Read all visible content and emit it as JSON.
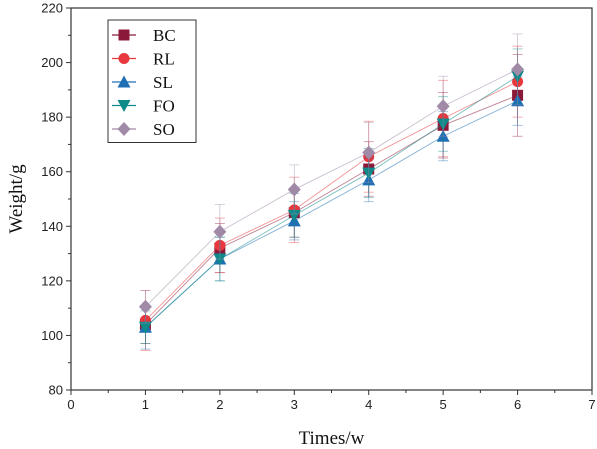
{
  "chart_data": {
    "type": "line",
    "xlabel": "Times/w",
    "ylabel": "Weight/g",
    "xlim": [
      0,
      7
    ],
    "ylim": [
      80,
      220
    ],
    "xticks": [
      0,
      1,
      2,
      3,
      4,
      5,
      6,
      7
    ],
    "yticks": [
      80,
      100,
      120,
      140,
      160,
      180,
      200,
      220
    ],
    "x": [
      1,
      2,
      3,
      4,
      5,
      6
    ],
    "legend_position": "top-left",
    "grid": false,
    "series": [
      {
        "name": "BC",
        "color": "#8b1a3a",
        "marker": "square",
        "values": [
          104,
          132,
          145,
          161,
          177,
          188
        ],
        "error": [
          7,
          9,
          9,
          10,
          12,
          15
        ]
      },
      {
        "name": "RL",
        "color": "#e8383d",
        "marker": "circle",
        "values": [
          105.5,
          133,
          146,
          165.5,
          179.5,
          193
        ],
        "error": [
          11,
          10,
          12,
          13,
          14,
          13
        ]
      },
      {
        "name": "SL",
        "color": "#1f6fb4",
        "marker": "triangle-up",
        "values": [
          103,
          128,
          142,
          157,
          173,
          186
        ],
        "error": [
          8,
          8,
          7,
          8,
          9,
          9
        ]
      },
      {
        "name": "FO",
        "color": "#0e8a8a",
        "marker": "triangle-down",
        "values": [
          103,
          128,
          144,
          159.5,
          177.5,
          195
        ],
        "error": [
          6,
          8,
          8,
          9,
          10,
          10
        ]
      },
      {
        "name": "SO",
        "color": "#a08aa8",
        "marker": "diamond",
        "values": [
          110.5,
          138,
          153.5,
          167,
          184,
          197.5
        ],
        "error": [
          6,
          10,
          9,
          11,
          11,
          13
        ]
      }
    ]
  }
}
